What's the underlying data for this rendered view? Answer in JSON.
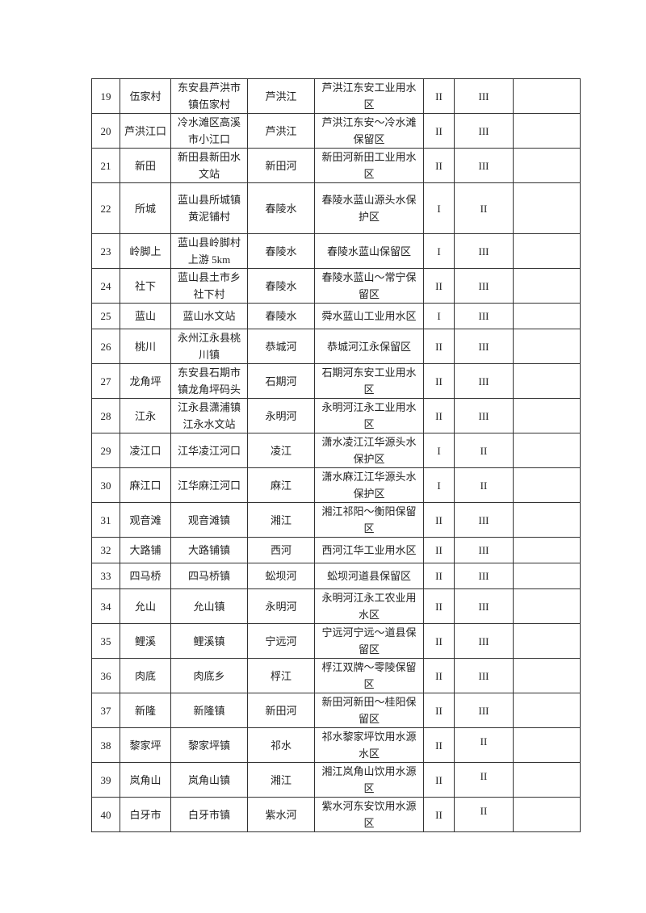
{
  "table": {
    "rows": [
      [
        "19",
        "伍家村",
        "东安县芦洪市镇伍家村",
        "芦洪江",
        "芦洪江东安工业用水区",
        "II",
        "III",
        ""
      ],
      [
        "20",
        "芦洪江口",
        "冷水滩区高溪市小江口",
        "芦洪江",
        "芦洪江东安～冷水滩保留区",
        "II",
        "III",
        ""
      ],
      [
        "21",
        "新田",
        "新田县新田水文站",
        "新田河",
        "新田河新田工业用水区",
        "II",
        "III",
        ""
      ],
      [
        "22",
        "所城",
        "蓝山县所城镇黄泥铺村",
        "春陵水",
        "春陵水蓝山源头水保护区",
        "I",
        "II",
        ""
      ],
      [
        "23",
        "岭脚上",
        "蓝山县岭脚村上游 5km",
        "春陵水",
        "春陵水蓝山保留区",
        "I",
        "III",
        ""
      ],
      [
        "24",
        "社下",
        "蓝山县土市乡社下村",
        "春陵水",
        "春陵水蓝山～常宁保留区",
        "II",
        "III",
        ""
      ],
      [
        "25",
        "蓝山",
        "蓝山水文站",
        "春陵水",
        "舜水蓝山工业用水区",
        "I",
        "III",
        ""
      ],
      [
        "26",
        "桃川",
        "永州江永县桃川镇",
        "恭城河",
        "恭城河江永保留区",
        "II",
        "III",
        ""
      ],
      [
        "27",
        "龙角坪",
        "东安县石期市镇龙角坪码头",
        "石期河",
        "石期河东安工业用水区",
        "II",
        "III",
        ""
      ],
      [
        "28",
        "江永",
        "江永县潇浦镇江永水文站",
        "永明河",
        "永明河江永工业用水区",
        "II",
        "III",
        ""
      ],
      [
        "29",
        "凌江口",
        "江华凌江河口",
        "凌江",
        "潇水凌江江华源头水保护区",
        "I",
        "II",
        ""
      ],
      [
        "30",
        "麻江口",
        "江华麻江河口",
        "麻江",
        "潇水麻江江华源头水保护区",
        "I",
        "II",
        ""
      ],
      [
        "31",
        "观音滩",
        "观音滩镇",
        "湘江",
        "湘江祁阳～衡阳保留区",
        "II",
        "III",
        ""
      ],
      [
        "32",
        "大路铺",
        "大路铺镇",
        "西河",
        "西河江华工业用水区",
        "II",
        "III",
        ""
      ],
      [
        "33",
        "四马桥",
        "四马桥镇",
        "蚣坝河",
        "蚣坝河道县保留区",
        "II",
        "III",
        ""
      ],
      [
        "34",
        "允山",
        "允山镇",
        "永明河",
        "永明河江永工农业用水区",
        "II",
        "III",
        ""
      ],
      [
        "35",
        "鲤溪",
        "鲤溪镇",
        "宁远河",
        "宁远河宁远～道县保留区",
        "II",
        "III",
        ""
      ],
      [
        "36",
        "肉底",
        "肉底乡",
        "桴江",
        "桴江双牌～零陵保留区",
        "II",
        "III",
        ""
      ],
      [
        "37",
        "新隆",
        "新隆镇",
        "新田河",
        "新田河新田～桂阳保留区",
        "II",
        "III",
        ""
      ],
      [
        "38",
        "黎家坪",
        "黎家坪镇",
        "祁水",
        "祁水黎家坪饮用水源水区",
        "II",
        "II",
        ""
      ],
      [
        "39",
        "岚角山",
        "岚角山镇",
        "湘江",
        "湘江岚角山饮用水源区",
        "II",
        "II",
        ""
      ],
      [
        "40",
        "白牙市",
        "白牙市镇",
        "紫水河",
        "紫水河东安饮用水源区",
        "II",
        "II",
        ""
      ]
    ]
  }
}
